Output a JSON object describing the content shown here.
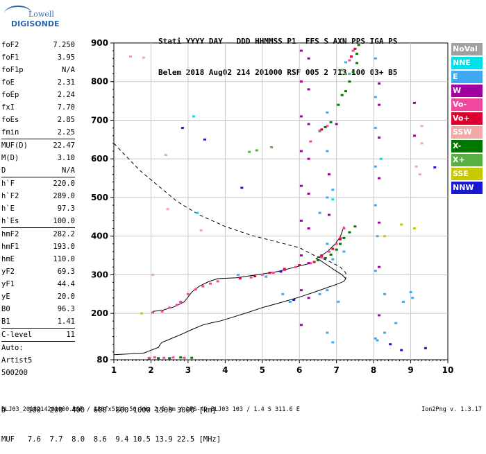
{
  "logo": {
    "line1": "Lowell",
    "line2": "DIGISONDE"
  },
  "header": {
    "row1": "Stati YYYY DAY   DDD HHMMSS P1  FFS S AXN PPS IGA PS",
    "row2": "Belem 2018 Aug02 214 201000 RSF 005 2 713 100 03+ B5"
  },
  "params": [
    {
      "k": "foF2",
      "v": "7.250"
    },
    {
      "k": "foF1",
      "v": "3.95"
    },
    {
      "k": "foF1p",
      "v": "N/A"
    },
    {
      "k": "foE",
      "v": "2.31"
    },
    {
      "k": "foEp",
      "v": "2.24"
    },
    {
      "k": "fxI",
      "v": "7.70"
    },
    {
      "k": "foEs",
      "v": "2.85"
    },
    {
      "k": "fmin",
      "v": "2.25"
    },
    {
      "k": "MUF(D)",
      "v": "22.47",
      "sep": true
    },
    {
      "k": "M(D)",
      "v": "3.10"
    },
    {
      "k": "D",
      "v": "N/A"
    },
    {
      "k": "h`F",
      "v": "220.0",
      "sep": true
    },
    {
      "k": "h`F2",
      "v": "289.0"
    },
    {
      "k": "h`E",
      "v": "97.3"
    },
    {
      "k": "h`Es",
      "v": "100.0"
    },
    {
      "k": "hmF2",
      "v": "282.2",
      "sep": true
    },
    {
      "k": "hmF1",
      "v": "193.0"
    },
    {
      "k": "hmE",
      "v": "110.0"
    },
    {
      "k": "yF2",
      "v": "69.3"
    },
    {
      "k": "yF1",
      "v": "44.4"
    },
    {
      "k": "yE",
      "v": "20.0"
    },
    {
      "k": "B0",
      "v": "96.3"
    },
    {
      "k": "B1",
      "v": "1.41"
    },
    {
      "k": "C-level",
      "v": "11",
      "sep": true
    },
    {
      "k": "Auto:",
      "v": "",
      "sep": true
    },
    {
      "k": "Artist5",
      "v": ""
    },
    {
      "k": "500200",
      "v": ""
    }
  ],
  "legend": [
    {
      "label": "NoVal",
      "color": "#a0a0a0"
    },
    {
      "label": "NNE",
      "color": "#00e0e8"
    },
    {
      "label": "E",
      "color": "#40a8f0"
    },
    {
      "label": "W",
      "color": "#a000a0"
    },
    {
      "label": "Vo-",
      "color": "#f048a0"
    },
    {
      "label": "Vo+",
      "color": "#e00030"
    },
    {
      "label": "SSW",
      "color": "#f0a8a8"
    },
    {
      "label": "X-",
      "color": "#007800"
    },
    {
      "label": "X+",
      "color": "#58b040"
    },
    {
      "label": "SSE",
      "color": "#c8c800"
    },
    {
      "label": "NNW",
      "color": "#1818d0"
    }
  ],
  "footer": {
    "row1": "D     100  200  400  600  800 1000 1500 3000 [km]",
    "row2": "MUF   7.6  7.7  8.0  8.6  9.4 10.5 13.9 22.5 [MHz]",
    "line": "BLJ03_2018214201000.RSF / 180fx512h 50 kHz 2.5 km / DPS-4D BLJ03 103 / 1.4 S 311.6 E",
    "version": "Ion2Png v. 1.3.17"
  },
  "chart_data": {
    "type": "scatter",
    "xlim": [
      1,
      10
    ],
    "ylim": [
      80,
      900
    ],
    "x_ticks": [
      "1",
      "2",
      "3",
      "4",
      "5",
      "6",
      "7",
      "8",
      "9",
      "10"
    ],
    "y_ticks": [
      "80",
      "200",
      "300",
      "400",
      "500",
      "600",
      "700",
      "800",
      "900"
    ],
    "series": [
      {
        "name": "X-",
        "color": "#007800",
        "points": [
          [
            1.95,
            83
          ],
          [
            2.2,
            84
          ],
          [
            2.5,
            84
          ],
          [
            2.8,
            86
          ],
          [
            3.1,
            85
          ],
          [
            6.5,
            338
          ],
          [
            6.7,
            343
          ],
          [
            6.85,
            352
          ],
          [
            7.0,
            365
          ],
          [
            7.1,
            380
          ],
          [
            7.2,
            395
          ],
          [
            7.35,
            410
          ],
          [
            7.5,
            425
          ],
          [
            6.55,
            672
          ],
          [
            6.7,
            682
          ],
          [
            6.85,
            695
          ],
          [
            7.05,
            740
          ],
          [
            7.15,
            765
          ],
          [
            7.25,
            775
          ],
          [
            7.35,
            800
          ],
          [
            7.45,
            825
          ],
          [
            7.55,
            848
          ],
          [
            7.55,
            872
          ],
          [
            7.6,
            895
          ]
        ]
      },
      {
        "name": "Vo-",
        "color": "#f048a0",
        "points": [
          [
            1.95,
            85
          ],
          [
            2.1,
            86
          ],
          [
            2.35,
            85
          ],
          [
            2.6,
            86
          ],
          [
            2.9,
            85
          ],
          [
            2.05,
            202
          ],
          [
            2.3,
            205
          ],
          [
            2.5,
            215
          ],
          [
            2.7,
            222
          ],
          [
            2.8,
            230
          ],
          [
            3.0,
            250
          ],
          [
            3.2,
            262
          ],
          [
            3.4,
            270
          ],
          [
            3.6,
            277
          ],
          [
            3.8,
            283
          ],
          [
            4.4,
            290
          ],
          [
            4.7,
            293
          ],
          [
            5.0,
            300
          ],
          [
            5.3,
            305
          ],
          [
            5.6,
            312
          ],
          [
            5.9,
            320
          ],
          [
            6.3,
            330
          ],
          [
            6.6,
            345
          ],
          [
            6.8,
            360
          ],
          [
            7.0,
            380
          ],
          [
            7.1,
            395
          ],
          [
            7.2,
            420
          ],
          [
            6.3,
            645
          ],
          [
            6.55,
            673
          ],
          [
            6.75,
            685
          ],
          [
            7.35,
            855
          ],
          [
            7.45,
            880
          ]
        ]
      },
      {
        "name": "Vo+",
        "color": "#e00030",
        "points": [
          [
            4.4,
            292
          ],
          [
            4.8,
            296
          ],
          [
            5.2,
            305
          ],
          [
            5.6,
            315
          ],
          [
            6.0,
            325
          ],
          [
            6.4,
            333
          ],
          [
            6.6,
            350
          ],
          [
            6.9,
            367
          ],
          [
            7.1,
            392
          ],
          [
            6.6,
            676
          ],
          [
            7.4,
            865
          ],
          [
            7.5,
            885
          ]
        ]
      },
      {
        "name": "W",
        "color": "#a000a0",
        "points": [
          [
            6.05,
            170
          ],
          [
            6.05,
            260
          ],
          [
            6.05,
            350
          ],
          [
            6.05,
            440
          ],
          [
            6.05,
            530
          ],
          [
            6.05,
            620
          ],
          [
            6.05,
            710
          ],
          [
            6.05,
            800
          ],
          [
            6.05,
            880
          ],
          [
            6.25,
            240
          ],
          [
            6.25,
            330
          ],
          [
            6.25,
            420
          ],
          [
            6.25,
            510
          ],
          [
            6.25,
            600
          ],
          [
            6.25,
            690
          ],
          [
            6.25,
            780
          ],
          [
            6.25,
            860
          ],
          [
            6.8,
            455
          ],
          [
            6.8,
            560
          ],
          [
            7.0,
            690
          ],
          [
            8.15,
            195
          ],
          [
            8.15,
            320
          ],
          [
            8.15,
            435
          ],
          [
            8.15,
            550
          ],
          [
            8.15,
            655
          ],
          [
            8.15,
            740
          ],
          [
            8.15,
            795
          ],
          [
            9.1,
            745
          ],
          [
            9.1,
            660
          ]
        ]
      },
      {
        "name": "E",
        "color": "#40a8f0",
        "points": [
          [
            6.75,
            150
          ],
          [
            6.75,
            260
          ],
          [
            6.75,
            380
          ],
          [
            6.75,
            500
          ],
          [
            6.75,
            620
          ],
          [
            6.75,
            720
          ],
          [
            6.9,
            125
          ],
          [
            6.9,
            340
          ],
          [
            6.9,
            520
          ],
          [
            7.05,
            230
          ],
          [
            7.2,
            360
          ],
          [
            7.25,
            850
          ],
          [
            7.35,
            820
          ],
          [
            8.05,
            135
          ],
          [
            8.05,
            310
          ],
          [
            8.05,
            480
          ],
          [
            8.05,
            580
          ],
          [
            8.05,
            680
          ],
          [
            8.05,
            760
          ],
          [
            8.05,
            860
          ],
          [
            8.1,
            130
          ],
          [
            8.1,
            400
          ],
          [
            8.3,
            150
          ],
          [
            8.3,
            250
          ],
          [
            8.6,
            175
          ],
          [
            8.8,
            230
          ],
          [
            9.05,
            240
          ],
          [
            9.0,
            255
          ],
          [
            6.55,
            250
          ],
          [
            6.55,
            460
          ],
          [
            5.55,
            250
          ],
          [
            5.1,
            295
          ],
          [
            4.35,
            300
          ],
          [
            5.75,
            230
          ]
        ]
      },
      {
        "name": "SSW",
        "color": "#f0a8a8",
        "points": [
          [
            1.45,
            865
          ],
          [
            1.8,
            862
          ],
          [
            2.05,
            300
          ],
          [
            2.4,
            610
          ],
          [
            2.45,
            470
          ],
          [
            3.35,
            415
          ],
          [
            9.15,
            580
          ],
          [
            9.25,
            560
          ],
          [
            9.3,
            640
          ],
          [
            9.3,
            685
          ]
        ]
      },
      {
        "name": "NNW",
        "color": "#1818d0",
        "points": [
          [
            2.85,
            680
          ],
          [
            3.45,
            650
          ],
          [
            4.45,
            525
          ],
          [
            5.5,
            308
          ],
          [
            5.85,
            235
          ],
          [
            9.65,
            578
          ],
          [
            9.4,
            110
          ],
          [
            8.45,
            120
          ],
          [
            8.75,
            105
          ]
        ]
      },
      {
        "name": "X+",
        "color": "#58b040",
        "points": [
          [
            4.65,
            618
          ],
          [
            4.85,
            622
          ],
          [
            5.25,
            630
          ],
          [
            7.25,
            820
          ],
          [
            7.15,
            830
          ]
        ]
      },
      {
        "name": "SSE",
        "color": "#c8c800",
        "points": [
          [
            1.75,
            200
          ],
          [
            8.3,
            400
          ],
          [
            8.75,
            430
          ],
          [
            9.1,
            420
          ]
        ]
      },
      {
        "name": "NNE",
        "color": "#00e0e8",
        "points": [
          [
            3.15,
            710
          ],
          [
            3.25,
            460
          ],
          [
            6.9,
            495
          ],
          [
            8.2,
            600
          ]
        ]
      }
    ],
    "profile_solid": [
      [
        1.0,
        93
      ],
      [
        1.8,
        97
      ],
      [
        2.2,
        112
      ],
      [
        2.25,
        120
      ],
      [
        2.3,
        125
      ],
      [
        2.5,
        133
      ],
      [
        2.8,
        145
      ],
      [
        3.1,
        158
      ],
      [
        3.4,
        170
      ],
      [
        3.6,
        175
      ],
      [
        3.85,
        180
      ],
      [
        4.2,
        190
      ],
      [
        4.6,
        202
      ],
      [
        5.0,
        215
      ],
      [
        5.5,
        228
      ],
      [
        6.0,
        242
      ],
      [
        6.4,
        255
      ],
      [
        6.7,
        265
      ],
      [
        7.0,
        275
      ],
      [
        7.2,
        283
      ],
      [
        7.25,
        290
      ],
      [
        7.15,
        300
      ],
      [
        6.95,
        312
      ],
      [
        6.75,
        325
      ],
      [
        6.55,
        338
      ],
      [
        6.45,
        342
      ],
      [
        6.6,
        350
      ],
      [
        6.75,
        360
      ],
      [
        6.95,
        378
      ],
      [
        7.1,
        398
      ],
      [
        7.2,
        425
      ]
    ],
    "oblique_solid": [
      [
        2.05,
        205
      ],
      [
        2.3,
        208
      ],
      [
        2.6,
        216
      ],
      [
        2.9,
        230
      ],
      [
        3.1,
        255
      ],
      [
        3.3,
        270
      ],
      [
        3.55,
        282
      ],
      [
        3.8,
        290
      ],
      [
        4.3,
        292
      ],
      [
        4.8,
        299
      ],
      [
        5.4,
        308
      ],
      [
        5.9,
        320
      ],
      [
        6.3,
        330
      ]
    ],
    "profile_dashed": [
      [
        1.0,
        640
      ],
      [
        1.3,
        610
      ],
      [
        1.7,
        570
      ],
      [
        2.2,
        530
      ],
      [
        2.7,
        490
      ],
      [
        3.3,
        455
      ],
      [
        4.0,
        425
      ],
      [
        4.7,
        402
      ],
      [
        5.4,
        385
      ],
      [
        6.0,
        370
      ],
      [
        6.4,
        350
      ],
      [
        6.8,
        335
      ],
      [
        7.1,
        320
      ],
      [
        7.25,
        305
      ],
      [
        7.25,
        290
      ]
    ]
  }
}
